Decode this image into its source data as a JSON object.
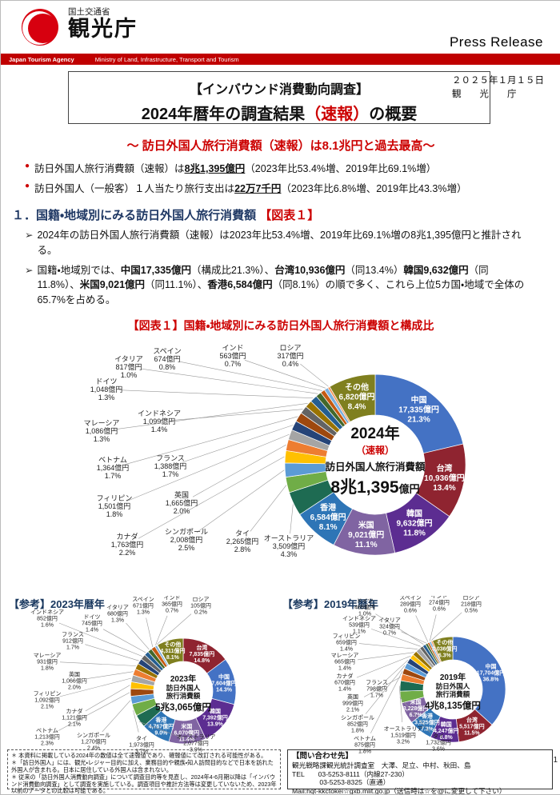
{
  "header": {
    "ministry": "国土交通省",
    "agency": "観光庁",
    "press_release": "Press Release",
    "banner_left": "Japan Tourism Agency",
    "banner_right": "Ministry of Land, Infrastructure, Transport and Tourism"
  },
  "title_block": {
    "bracket": "【インバウンド消費動向調査】",
    "title_runs": [
      {
        "t": "2024年暦年の調査結果"
      },
      {
        "t": "（速報）",
        "c": "#CC0000"
      },
      {
        "t": "の概要"
      }
    ],
    "date": "２０２５年１月１５日",
    "org": "観　　光　　庁"
  },
  "subtitle": "～ 訪日外国人旅行消費額（速報）は8.1兆円と過去最高～",
  "markers": {
    "bullet": "●",
    "point": "➢",
    "note": "＊"
  },
  "bullets": [
    {
      "runs": [
        {
          "t": "訪日外国人旅行消費額（速報）は"
        },
        {
          "t": "8兆1,395億円",
          "b": true,
          "u": true
        },
        {
          "t": "（2023年比53.4%増、2019年比69.1%増）"
        }
      ]
    },
    {
      "runs": [
        {
          "t": "訪日外国人（一般客）１人当たり旅行支出は"
        },
        {
          "t": "22万7千円",
          "b": true,
          "u": true
        },
        {
          "t": "（2023年比6.8%増、2019年比43.3%増）"
        }
      ]
    }
  ],
  "section1": {
    "heading": "１．国籍・地域別にみる訪日外国人旅行消費額 ",
    "heading_ref": "【図表１】",
    "points": [
      {
        "runs": [
          {
            "t": "2024年の訪日外国人旅行消費額（速報）は2023年比53.4%増、2019年比69.1%増の8兆1,395億円と推計される。"
          }
        ]
      },
      {
        "runs": [
          {
            "t": "国籍・地域別では、"
          },
          {
            "t": "中国17,335億円",
            "b": true
          },
          {
            "t": "（構成比21.3%）、"
          },
          {
            "t": "台湾10,936億円",
            "b": true
          },
          {
            "t": "（同13.4%）"
          },
          {
            "t": "韓国9,632億円",
            "b": true
          },
          {
            "t": "（同11.8%）、"
          },
          {
            "t": "米国9,021億円",
            "b": true
          },
          {
            "t": "（同11.1%）、"
          },
          {
            "t": "香港6,584億円",
            "b": true
          },
          {
            "t": "（同8.1%）の順で多く、これら上位5カ国・地域で全体の65.7%を占める。"
          }
        ]
      }
    ]
  },
  "figure1_title": "【図表１】国籍・地域別にみる訪日外国人旅行消費額と構成比",
  "chart_data": [
    {
      "type": "donut",
      "name": "2024",
      "title": "【図表１】国籍・地域別にみる訪日外国人旅行消費額と構成比",
      "center": {
        "year": "2024年",
        "note": "（速報）",
        "label": "訪日外国人旅行消費額",
        "value": "8兆1,395",
        "unit": "億円"
      },
      "total": "8兆1,395億円",
      "legend_position": "callouts",
      "segments": [
        {
          "name": "中国",
          "value": "17,335億円",
          "pct": 21.3,
          "color": "#4472C4"
        },
        {
          "name": "台湾",
          "value": "10,936億円",
          "pct": 13.4,
          "color": "#8F2430"
        },
        {
          "name": "韓国",
          "value": "9,632億円",
          "pct": 11.8,
          "color": "#5C2D91"
        },
        {
          "name": "米国",
          "value": "9,021億円",
          "pct": 11.1,
          "color": "#8064A2"
        },
        {
          "name": "香港",
          "value": "6,584億円",
          "pct": 8.1,
          "color": "#2E75B6"
        },
        {
          "name": "オーストラリア",
          "value": "3,509億円",
          "pct": 4.3,
          "color": "#1E6B52"
        },
        {
          "name": "タイ",
          "value": "2,265億円",
          "pct": 2.8,
          "color": "#70AD47"
        },
        {
          "name": "シンガポール",
          "value": "2,008億円",
          "pct": 2.5,
          "color": "#5B9BD5"
        },
        {
          "name": "カナダ",
          "value": "1,763億円",
          "pct": 2.2,
          "color": "#FFC000"
        },
        {
          "name": "英国",
          "value": "1,665億円",
          "pct": 2.0,
          "color": "#ED7D31"
        },
        {
          "name": "フィリピン",
          "value": "1,501億円",
          "pct": 1.8,
          "color": "#A5A5A5"
        },
        {
          "name": "フランス",
          "value": "1,388億円",
          "pct": 1.7,
          "color": "#264478"
        },
        {
          "name": "ベトナム",
          "value": "1,364億円",
          "pct": 1.7,
          "color": "#9E480E"
        },
        {
          "name": "インドネシア",
          "value": "1,099億円",
          "pct": 1.4,
          "color": "#636363"
        },
        {
          "name": "マレーシア",
          "value": "1,086億円",
          "pct": 1.3,
          "color": "#997300"
        },
        {
          "name": "ドイツ",
          "value": "1,048億円",
          "pct": 1.3,
          "color": "#255E91"
        },
        {
          "name": "イタリア",
          "value": "817億円",
          "pct": 1.0,
          "color": "#43682B"
        },
        {
          "name": "スペイン",
          "value": "674億円",
          "pct": 0.8,
          "color": "#C55A11"
        },
        {
          "name": "インド",
          "value": "563億円",
          "pct": 0.7,
          "color": "#7CAFDD"
        },
        {
          "name": "ロシア",
          "value": "317億円",
          "pct": 0.4,
          "color": "#F1975A"
        },
        {
          "name": "その他",
          "value": "6,820億円",
          "pct": 8.4,
          "color": "#7F7F1F"
        }
      ]
    },
    {
      "type": "donut",
      "name": "2023",
      "title": "【参考】2023年暦年",
      "center": {
        "year": "2023年",
        "label1": "訪日外国人",
        "label2": "旅行消費額",
        "value": "5兆3,065億円"
      },
      "total": "5兆3,065億円",
      "legend_position": "callouts",
      "segments": [
        {
          "name": "台湾",
          "value": "7,835億円",
          "pct": 14.8,
          "color": "#8F2430"
        },
        {
          "name": "中国",
          "value": "7,604億円",
          "pct": 14.3,
          "color": "#4472C4"
        },
        {
          "name": "韓国",
          "value": "7,392億円",
          "pct": 13.9,
          "color": "#5C2D91"
        },
        {
          "name": "米国",
          "value": "6,070億円",
          "pct": 11.4,
          "color": "#8064A2"
        },
        {
          "name": "香港",
          "value": "4,767億円",
          "pct": 9.0,
          "color": "#2E75B6"
        },
        {
          "name": "オーストラリア",
          "value": "2,077億円",
          "pct": 3.9,
          "color": "#1E6B52"
        },
        {
          "name": "タイ",
          "value": "1,973億円",
          "pct": 3.7,
          "color": "#70AD47"
        },
        {
          "name": "シンガポール",
          "value": "1,270億円",
          "pct": 2.4,
          "color": "#5B9BD5"
        },
        {
          "name": "ベトナム",
          "value": "1,213億円",
          "pct": 2.3,
          "color": "#9E480E"
        },
        {
          "name": "カナダ",
          "value": "1,121億円",
          "pct": 2.1,
          "color": "#FFC000"
        },
        {
          "name": "フィリピン",
          "value": "1,092億円",
          "pct": 2.1,
          "color": "#A5A5A5"
        },
        {
          "name": "英国",
          "value": "1,066億円",
          "pct": 2.0,
          "color": "#ED7D31"
        },
        {
          "name": "マレーシア",
          "value": "931億円",
          "pct": 1.8,
          "color": "#997300"
        },
        {
          "name": "フランス",
          "value": "912億円",
          "pct": 1.7,
          "color": "#264478"
        },
        {
          "name": "インドネシア",
          "value": "852億円",
          "pct": 1.6,
          "color": "#636363"
        },
        {
          "name": "ドイツ",
          "value": "745億円",
          "pct": 1.4,
          "color": "#255E91"
        },
        {
          "name": "イタリア",
          "value": "680億円",
          "pct": 1.3,
          "color": "#43682B"
        },
        {
          "name": "スペイン",
          "value": "671億円",
          "pct": 1.3,
          "color": "#C55A11"
        },
        {
          "name": "インド",
          "value": "365億円",
          "pct": 0.7,
          "color": "#7CAFDD"
        },
        {
          "name": "ロシア",
          "value": "105億円",
          "pct": 0.2,
          "color": "#F1975A"
        },
        {
          "name": "その他",
          "value": "4,311億円",
          "pct": 8.1,
          "color": "#7F7F1F"
        }
      ]
    },
    {
      "type": "donut",
      "name": "2019",
      "title": "【参考】2019年暦年",
      "center": {
        "year": "2019年",
        "label1": "訪日外国人",
        "label2": "旅行消費額",
        "value": "4兆8,135億円"
      },
      "total": "4兆8,135億円",
      "legend_position": "callouts",
      "segments": [
        {
          "name": "中国",
          "value": "17,704億円",
          "pct": 36.8,
          "color": "#4472C4"
        },
        {
          "name": "台湾",
          "value": "5,517億円",
          "pct": 11.5,
          "color": "#8F2430"
        },
        {
          "name": "韓国",
          "value": "4,247億円",
          "pct": 8.8,
          "color": "#5C2D91"
        },
        {
          "name": "香港",
          "value": "3,525億円",
          "pct": 7.3,
          "color": "#2E75B6"
        },
        {
          "name": "米国",
          "value": "3,228億円",
          "pct": 6.7,
          "color": "#8064A2"
        },
        {
          "name": "タイ",
          "value": "1,732億円",
          "pct": 3.6,
          "color": "#70AD47"
        },
        {
          "name": "オーストラリア",
          "value": "1,519億円",
          "pct": 3.2,
          "color": "#1E6B52"
        },
        {
          "name": "英国",
          "value": "999億円",
          "pct": 2.1,
          "color": "#ED7D31"
        },
        {
          "name": "ベトナム",
          "value": "875億円",
          "pct": 1.8,
          "color": "#9E480E"
        },
        {
          "name": "シンガポール",
          "value": "852億円",
          "pct": 1.8,
          "color": "#5B9BD5"
        },
        {
          "name": "フランス",
          "value": "798億円",
          "pct": 1.7,
          "color": "#264478"
        },
        {
          "name": "カナダ",
          "value": "670億円",
          "pct": 1.4,
          "color": "#FFC000"
        },
        {
          "name": "マレーシア",
          "value": "665億円",
          "pct": 1.4,
          "color": "#997300"
        },
        {
          "name": "フィリピン",
          "value": "659億円",
          "pct": 1.4,
          "color": "#A5A5A5"
        },
        {
          "name": "インドネシア",
          "value": "539億円",
          "pct": 1.1,
          "color": "#636363"
        },
        {
          "name": "ドイツ",
          "value": "465億円",
          "pct": 1.0,
          "color": "#255E91"
        },
        {
          "name": "イタリア",
          "value": "324億円",
          "pct": 0.7,
          "color": "#43682B"
        },
        {
          "name": "スペイン",
          "value": "289億円",
          "pct": 0.6,
          "color": "#C55A11"
        },
        {
          "name": "インド",
          "value": "274億円",
          "pct": 0.6,
          "color": "#7CAFDD"
        },
        {
          "name": "ロシア",
          "value": "218億円",
          "pct": 0.5,
          "color": "#F1975A"
        },
        {
          "name": "その他",
          "value": "3,036億円",
          "pct": 6.3,
          "color": "#7F7F1F"
        }
      ]
    }
  ],
  "notes": [
    "＊ 本資料に掲載している2024年の数値は全て速報値であり、確報値にて改訂される可能性がある。",
    "＊「訪日外国人」には、観光・レジャー目的に加え、業務目的や親族・知人訪問目的などで日本を訪れた外国人が含まれる。日本に居住している外国人は含まれない。",
    "＊ 従来の「訪日外国人消費動向調査」について調査目的等を見直し、2024年4-6月期以降は「インバウンド消費動向調査」として調査を実施している。調査項目や推計方法等は変更していないため、2023年以前のデータとの比較は可能である。"
  ],
  "contact": {
    "heading": "【問い合わせ先】",
    "line1": "観光戦略課観光統計調査室　大澤、足立、中村、秋田、島",
    "line2": "TEL　　03-5253-8111（内線27-230）",
    "line3": "　　　　03-5253-8325（直通）",
    "line4": "Mail:hqt-kkctokei☆gxb.mlit.go.jp（送信時は☆を@に変更して下さい）"
  },
  "page_number": "1"
}
